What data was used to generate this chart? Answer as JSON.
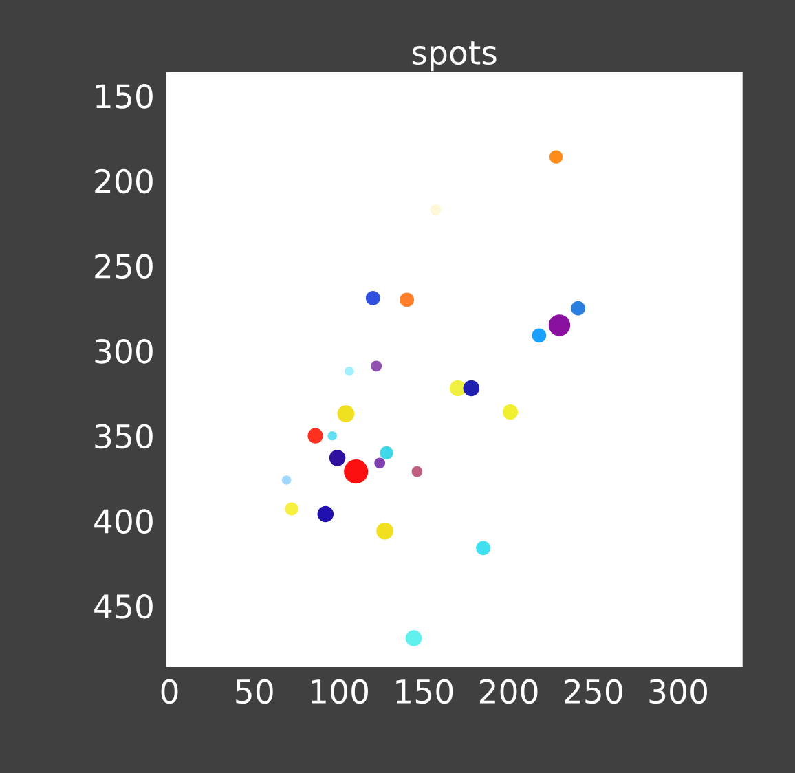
{
  "chart_data": {
    "type": "bubble",
    "title": "spots",
    "x": [
      228,
      157,
      120,
      140,
      241,
      230,
      218,
      106,
      122,
      170,
      178,
      201,
      104,
      86,
      96,
      99,
      128,
      110,
      124,
      146,
      69,
      72,
      92,
      127,
      185,
      144
    ],
    "values": [
      186,
      217,
      269,
      270,
      275,
      285,
      291,
      312,
      309,
      322,
      322,
      336,
      337,
      350,
      350,
      363,
      360,
      371,
      366,
      371,
      376,
      393,
      396,
      406,
      416,
      469
    ],
    "sizes": [
      0.3,
      0.2,
      0.35,
      0.35,
      0.35,
      0.8,
      0.35,
      0.15,
      0.2,
      0.45,
      0.45,
      0.4,
      0.5,
      0.4,
      0.15,
      0.45,
      0.3,
      1,
      0.2,
      0.2,
      0.15,
      0.3,
      0.45,
      0.5,
      0.35,
      0.45
    ],
    "colors": [
      "#ff8c1a",
      "#fff8d8",
      "#3050e0",
      "#ff7f2a",
      "#2a7fe0",
      "#8a10a0",
      "#1aa0ff",
      "#a0f0ff",
      "#9050b0",
      "#f0f040",
      "#2020b0",
      "#f0f030",
      "#f0e020",
      "#ff3020",
      "#60e0f0",
      "#3010a0",
      "#40d8e8",
      "#ff1010",
      "#8040b0",
      "#c06080",
      "#a0d8ff",
      "#f8f040",
      "#2010b0",
      "#f0e020",
      "#40e0f0",
      "#60f0f0"
    ],
    "xlim": [
      -2,
      338
    ],
    "ylim": [
      486,
      136
    ],
    "xticks": [
      0,
      50,
      100,
      150,
      200,
      250,
      300
    ],
    "yticks": [
      150,
      200,
      250,
      300,
      350,
      400,
      450
    ],
    "grid": false
  }
}
